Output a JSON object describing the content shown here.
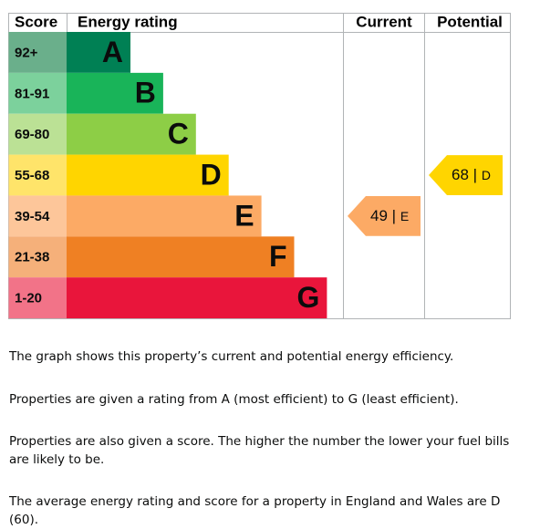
{
  "chart_data": {
    "type": "epc",
    "headers": {
      "score": "Score",
      "rating": "Energy rating",
      "current": "Current",
      "potential": "Potential"
    },
    "bands": [
      {
        "score": "92+",
        "letter": "A",
        "color": "#008054",
        "cell_color": "#6aaf8b"
      },
      {
        "score": "81-91",
        "letter": "B",
        "color": "#19b459",
        "cell_color": "#7cd19c"
      },
      {
        "score": "69-80",
        "letter": "C",
        "color": "#8dce46",
        "cell_color": "#bbe195"
      },
      {
        "score": "55-68",
        "letter": "D",
        "color": "#ffd500",
        "cell_color": "#ffe46a"
      },
      {
        "score": "39-54",
        "letter": "E",
        "color": "#fcaa65",
        "cell_color": "#fdc69a"
      },
      {
        "score": "21-38",
        "letter": "F",
        "color": "#ef8023",
        "cell_color": "#f5b07a"
      },
      {
        "score": "1-20",
        "letter": "G",
        "color": "#e9153b",
        "cell_color": "#f27388"
      }
    ],
    "separator": "|",
    "current": {
      "value": 49,
      "letter": "E"
    },
    "potential": {
      "value": 68,
      "letter": "D"
    }
  },
  "text": {
    "paragraphs": [
      "The graph shows this property’s current and potential energy efficiency.",
      "Properties are given a rating from A (most efficient) to G (least efficient).",
      "Properties are also given a score. The higher the number the lower your fuel bills are likely to be.",
      "The average energy rating and score for a property in England and Wales are D (60)."
    ]
  }
}
